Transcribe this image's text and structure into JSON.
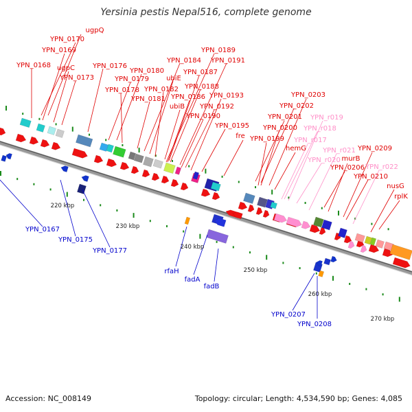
{
  "title": "Yersinia pestis Nepal516, complete genome",
  "footer": {
    "accession": "Accession: NC_008149",
    "summary": "Topology: circular; Length: 4,534,590 bp; Genes: 4,085"
  },
  "colors": {
    "forward_label": "#e00000",
    "reverse_label": "#0000cc",
    "rna_label": "#ff8fc8",
    "backbone": "#888888"
  },
  "kbp_ticks": [
    "220 kbp",
    "230 kbp",
    "240 kbp",
    "250 kbp",
    "260 kbp",
    "270 kbp"
  ],
  "forward_labels": [
    "ugpQ",
    "YPN_0170",
    "YPN_0169",
    "YPN_0168",
    "ugpC",
    "YPN_0173",
    "YPN_0176",
    "YPN_0180",
    "YPN_0179",
    "YPN_0178",
    "YPN_0184",
    "ubiE",
    "YPN_0182",
    "YPN_0181",
    "YPN_0189",
    "YPN_0191",
    "YPN_0187",
    "YPN_0188",
    "YPN_0186",
    "YPN_0193",
    "ubiB",
    "YPN_0192",
    "YPN_0190",
    "YPN_0195",
    "fre",
    "YPN_0203",
    "YPN_0202",
    "YPN_0201",
    "YPN_0200",
    "YPN_0199",
    "hemG",
    "murB",
    "YPN_0209",
    "YPN_0206",
    "YPN_0210",
    "nusG",
    "rplK"
  ],
  "rna_labels": [
    "YPN_r019",
    "YPN_r018",
    "YPN_r017",
    "YPN_r020",
    "YPN_r021",
    "YPN_r022"
  ],
  "reverse_labels": [
    "YPN_0167",
    "YPN_0175",
    "YPN_0177",
    "rfaH",
    "fadA",
    "fadB",
    "YPN_0207",
    "YPN_0208"
  ]
}
